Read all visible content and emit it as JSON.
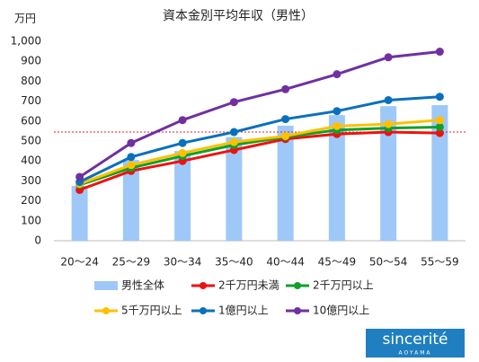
{
  "chart_data": {
    "type": "bar-line",
    "title": "資本金別平均年収（男性）",
    "y_unit": "万円",
    "categories": [
      "20～24",
      "25～29",
      "30～34",
      "35～40",
      "40～44",
      "45～49",
      "50～54",
      "55～59"
    ],
    "series": [
      {
        "name": "男性全体",
        "kind": "bar",
        "color": "#9ec8f8",
        "values": [
          275,
          405,
          450,
          520,
          577,
          630,
          675,
          680
        ]
      },
      {
        "name": "2千万円未満",
        "kind": "line",
        "color": "#ee1111",
        "values": [
          255,
          350,
          400,
          455,
          510,
          535,
          545,
          540
        ]
      },
      {
        "name": "2千万円以上",
        "kind": "line",
        "color": "#10a02a",
        "values": [
          280,
          365,
          425,
          480,
          520,
          555,
          565,
          570
        ]
      },
      {
        "name": "5千万円以上",
        "kind": "line",
        "color": "#ffc000",
        "values": [
          285,
          380,
          440,
          495,
          525,
          575,
          585,
          605
        ]
      },
      {
        "name": "1億円以上",
        "kind": "line",
        "color": "#0a70bd",
        "values": [
          295,
          420,
          490,
          545,
          610,
          650,
          705,
          722
        ]
      },
      {
        "name": "10億円以上",
        "kind": "line",
        "color": "#7030a0",
        "values": [
          320,
          490,
          605,
          695,
          760,
          835,
          920,
          948
        ]
      }
    ],
    "reference_line": {
      "value": 545,
      "color": "#dd2222"
    },
    "ylim": [
      0,
      1000
    ],
    "yticks": [
      0,
      100,
      200,
      300,
      400,
      500,
      600,
      700,
      800,
      900,
      {
        "value": 1000,
        "label": "1,000"
      }
    ],
    "grid": false,
    "logo": {
      "text": "sincerité",
      "subtext": "AOYAMA"
    }
  }
}
